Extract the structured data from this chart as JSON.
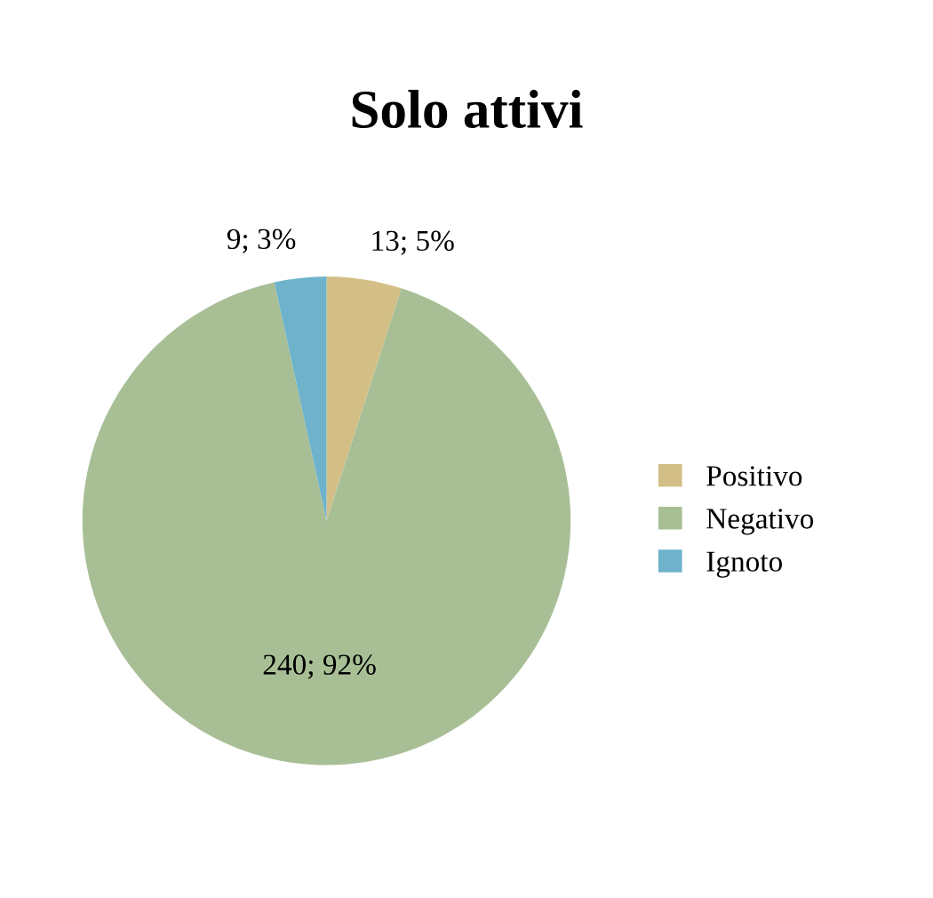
{
  "chart_data": {
    "type": "pie",
    "title": "Solo attivi",
    "categories": [
      "Positivo",
      "Negativo",
      "Ignoto"
    ],
    "values": [
      13,
      240,
      9
    ],
    "colors": [
      "#d3bf86",
      "#a8bf96",
      "#6eb3cb"
    ],
    "value_labels": [
      "13; 5%",
      "240; 92%",
      "9; 3%"
    ],
    "legend": "right"
  }
}
